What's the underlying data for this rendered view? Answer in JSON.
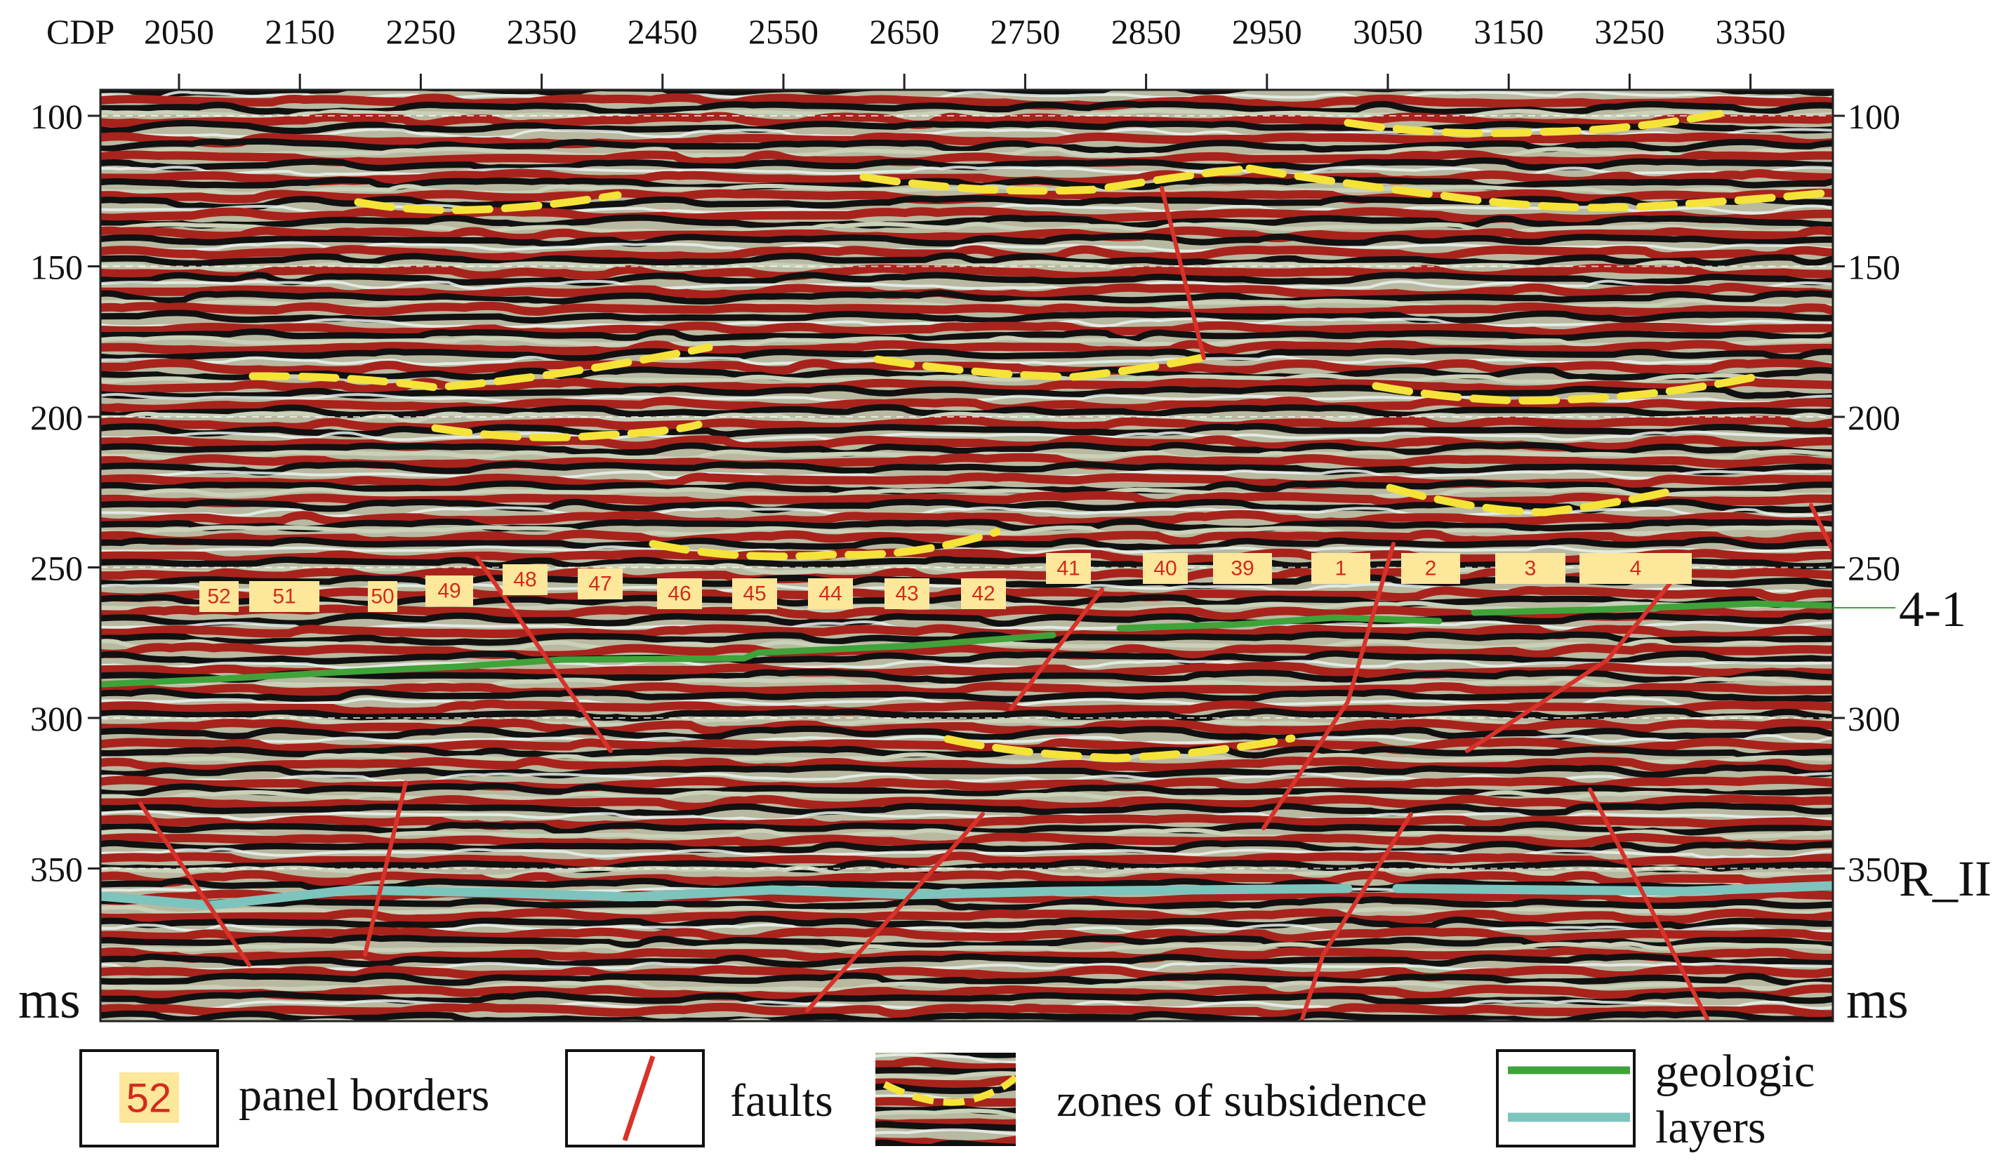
{
  "header": {
    "cdp_label": "CDP",
    "cdp_ticks": [
      "2050",
      "2150",
      "2250",
      "2350",
      "2450",
      "2550",
      "2650",
      "2750",
      "2850",
      "2950",
      "3050",
      "3150",
      "3250",
      "3350"
    ]
  },
  "time_axis": {
    "ticks": [
      "100",
      "150",
      "200",
      "250",
      "300",
      "350"
    ],
    "unit_left": "ms",
    "unit_right": "ms"
  },
  "horizon_labels": {
    "upper": "4-1",
    "lower": "R_II"
  },
  "panel_borders": [
    "52",
    "51",
    "50",
    "49",
    "48",
    "47",
    "46",
    "45",
    "44",
    "43",
    "42",
    "41",
    "40",
    "39",
    "1",
    "2",
    "3",
    "4"
  ],
  "legend": {
    "panel_sample": "52",
    "panel_text": "panel borders",
    "faults_text": "faults",
    "subsidence_text": "zones of subsidence",
    "layers_text_1": "geologic",
    "layers_text_2": "layers"
  },
  "colors": {
    "fault": "#d9322a",
    "subsidence": "#f5e33a",
    "layer_4_1": "#3fa33a",
    "layer_R_II": "#7dc4bd",
    "seismic_red": "#a8231c",
    "seismic_black": "#111111"
  }
}
